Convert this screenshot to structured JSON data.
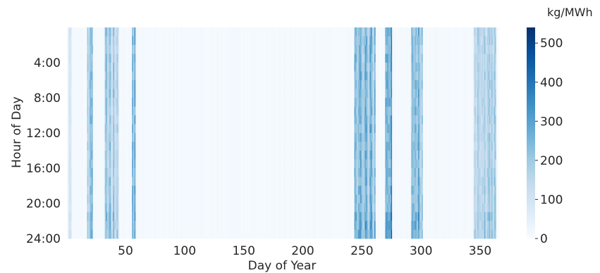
{
  "chart_data": {
    "type": "heatmap",
    "title": "",
    "xlabel": "Day of Year",
    "ylabel": "Hour of Day",
    "colorbar_label": "kg/MWh",
    "xlim": [
      1,
      365
    ],
    "ylim": [
      0,
      24
    ],
    "x_ticks": [
      50,
      100,
      150,
      200,
      250,
      300,
      350
    ],
    "x_tick_labels": [
      "50",
      "100",
      "150",
      "200",
      "250",
      "300",
      "350"
    ],
    "y_ticks": [
      4,
      8,
      12,
      16,
      20,
      24
    ],
    "y_tick_labels": [
      "4:00",
      "8:00",
      "12:00",
      "16:00",
      "20:00",
      "24:00"
    ],
    "colorbar_range": [
      0,
      540
    ],
    "colorbar_ticks": [
      0,
      100,
      200,
      300,
      400,
      500
    ],
    "colorbar_tick_labels": [
      "0",
      "100",
      "200",
      "300",
      "400",
      "500"
    ],
    "colormap": [
      "#f7fbff",
      "#deebf7",
      "#c6dbef",
      "#9ecae1",
      "#6baed6",
      "#4292c6",
      "#2171b5",
      "#08519c",
      "#08306b"
    ],
    "grid": false,
    "baseline_value": 8,
    "bands": [
      {
        "day_start": 2,
        "day_end": 4,
        "level": 90
      },
      {
        "day_start": 18,
        "day_end": 22,
        "level": 230
      },
      {
        "day_start": 33,
        "day_end": 44,
        "level": 200
      },
      {
        "day_start": 56,
        "day_end": 58,
        "level": 250
      },
      {
        "day_start": 244,
        "day_end": 261,
        "level": 250
      },
      {
        "day_start": 270,
        "day_end": 275,
        "level": 400
      },
      {
        "day_start": 292,
        "day_end": 301,
        "level": 260
      },
      {
        "day_start": 345,
        "day_end": 363,
        "level": 180
      }
    ]
  }
}
